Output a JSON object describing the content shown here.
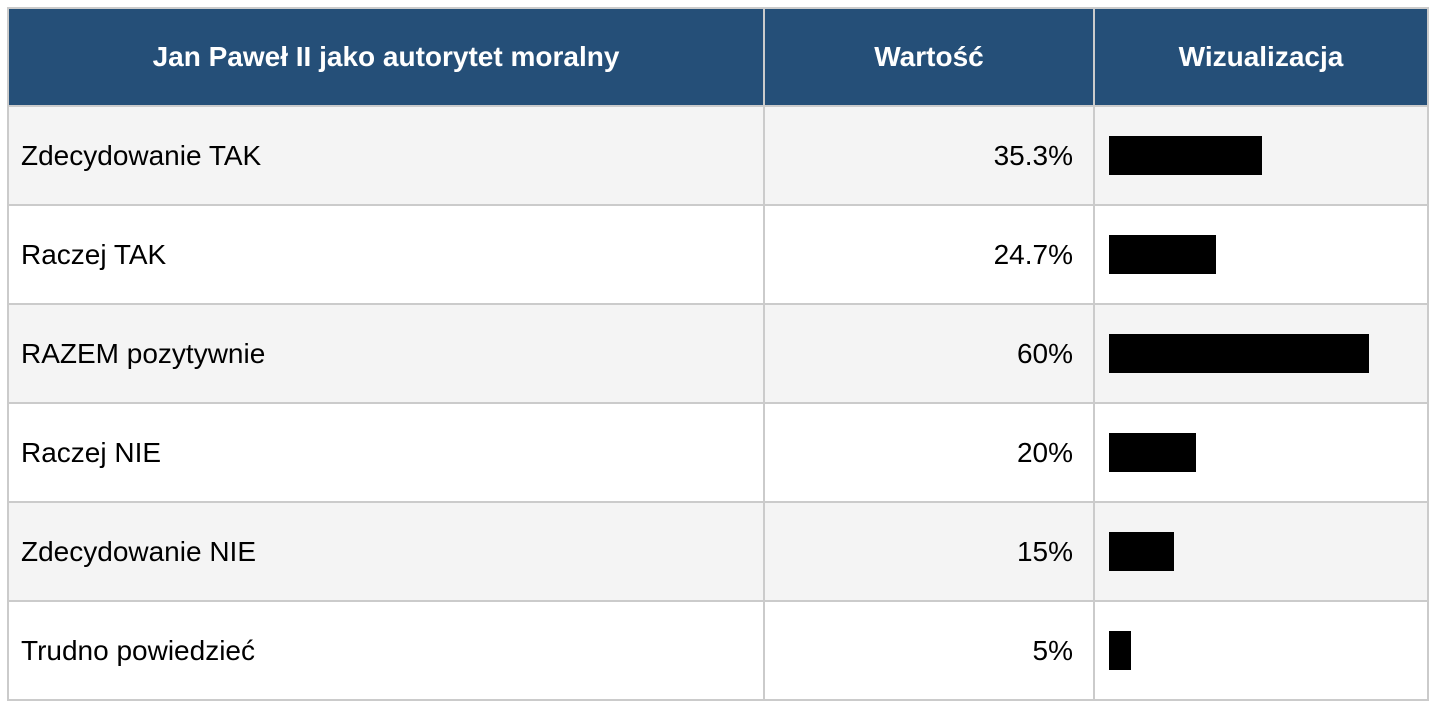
{
  "table": {
    "header": {
      "question_col": "Jan Paweł II jako autorytet moralny",
      "value_col": "Wartość",
      "viz_col": "Wizualizacja"
    },
    "rows": [
      {
        "label": "Zdecydowanie TAK",
        "value": "35.3%",
        "percent": 35.3
      },
      {
        "label": "Raczej TAK",
        "value": "24.7%",
        "percent": 24.7
      },
      {
        "label": "RAZEM pozytywnie",
        "value": "60%",
        "percent": 60
      },
      {
        "label": "Raczej NIE",
        "value": "20%",
        "percent": 20
      },
      {
        "label": "Zdecydowanie NIE",
        "value": "15%",
        "percent": 15
      },
      {
        "label": "Trudno powiedzieć",
        "value": "5%",
        "percent": 5
      }
    ]
  },
  "colors": {
    "header_bg": "#254f78",
    "header_text": "#ffffff",
    "row_alt_bg": "#f4f4f4",
    "row_bg": "#ffffff",
    "grid": "#cbcbcb",
    "bar": "#000000"
  },
  "chart_data": {
    "type": "bar",
    "orientation": "horizontal",
    "title": "Jan Paweł II jako autorytet moralny",
    "columns": [
      "Jan Paweł II jako autorytet moralny",
      "Wartość",
      "Wizualizacja"
    ],
    "categories": [
      "Zdecydowanie TAK",
      "Raczej TAK",
      "RAZEM pozytywnie",
      "Raczej NIE",
      "Zdecydowanie NIE",
      "Trudno powiedzieć"
    ],
    "values": [
      35.3,
      24.7,
      60,
      20,
      15,
      5
    ],
    "value_labels": [
      "35.3%",
      "24.7%",
      "60%",
      "20%",
      "15%",
      "5%"
    ],
    "xlabel": "",
    "ylabel": "",
    "xlim": [
      0,
      76
    ],
    "grid": false,
    "legend": "none",
    "bar_color": "#000000"
  }
}
